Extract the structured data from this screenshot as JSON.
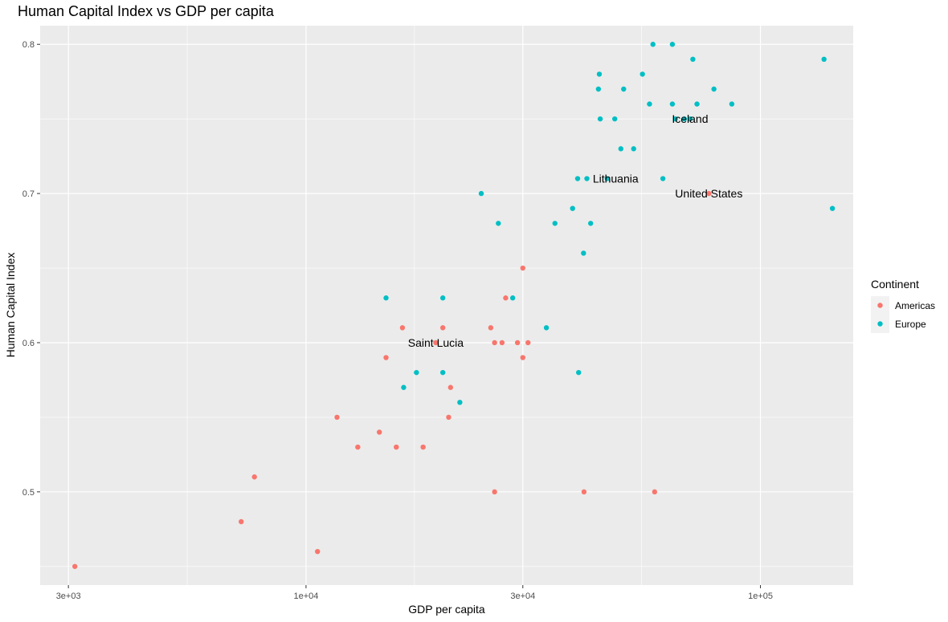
{
  "chart_data": {
    "type": "scatter",
    "title": "Human Capital Index vs GDP per capita",
    "xlabel": "GDP per capita",
    "ylabel": "Human Capital Index",
    "x_scale": "log10",
    "xlim": [
      2600,
      160000
    ],
    "ylim": [
      0.4375,
      0.8125
    ],
    "x_ticks": [
      {
        "value": 3000,
        "label": "3e+03"
      },
      {
        "value": 10000,
        "label": "1e+04"
      },
      {
        "value": 30000,
        "label": "3e+04"
      },
      {
        "value": 100000,
        "label": "1e+05"
      }
    ],
    "x_minor_ticks": [
      5477,
      17321,
      54772
    ],
    "y_ticks": [
      {
        "value": 0.5,
        "label": "0.5"
      },
      {
        "value": 0.6,
        "label": "0.6"
      },
      {
        "value": 0.7,
        "label": "0.7"
      },
      {
        "value": 0.8,
        "label": "0.8"
      }
    ],
    "y_minor_ticks": [
      0.45,
      0.55,
      0.65,
      0.75
    ],
    "grid": true,
    "legend": {
      "title": "Continent",
      "position": "right"
    },
    "series": [
      {
        "name": "Americas",
        "color": "#F8766D",
        "points": [
          [
            3100,
            0.45
          ],
          [
            7200,
            0.48
          ],
          [
            7700,
            0.51
          ],
          [
            10600,
            0.46
          ],
          [
            11700,
            0.55
          ],
          [
            13000,
            0.53
          ],
          [
            14500,
            0.54
          ],
          [
            15000,
            0.59
          ],
          [
            15800,
            0.53
          ],
          [
            16300,
            0.61
          ],
          [
            18100,
            0.53
          ],
          [
            19300,
            0.6
          ],
          [
            20000,
            0.61
          ],
          [
            20600,
            0.55
          ],
          [
            20800,
            0.57
          ],
          [
            25500,
            0.61
          ],
          [
            26000,
            0.6
          ],
          [
            26000,
            0.5
          ],
          [
            27000,
            0.6
          ],
          [
            27500,
            0.63
          ],
          [
            29200,
            0.6
          ],
          [
            30000,
            0.59
          ],
          [
            30000,
            0.65
          ],
          [
            30800,
            0.6
          ],
          [
            40900,
            0.5
          ],
          [
            58500,
            0.5
          ],
          [
            77000,
            0.7
          ]
        ]
      },
      {
        "name": "Europe",
        "color": "#00BFC4",
        "points": [
          [
            15000,
            0.63
          ],
          [
            16400,
            0.57
          ],
          [
            17500,
            0.58
          ],
          [
            20000,
            0.63
          ],
          [
            20000,
            0.58
          ],
          [
            21800,
            0.56
          ],
          [
            24300,
            0.7
          ],
          [
            26500,
            0.68
          ],
          [
            28500,
            0.63
          ],
          [
            33800,
            0.61
          ],
          [
            35300,
            0.68
          ],
          [
            38600,
            0.69
          ],
          [
            39600,
            0.71
          ],
          [
            39800,
            0.58
          ],
          [
            40800,
            0.66
          ],
          [
            41500,
            0.71
          ],
          [
            42300,
            0.68
          ],
          [
            44000,
            0.77
          ],
          [
            44200,
            0.78
          ],
          [
            44400,
            0.75
          ],
          [
            46000,
            0.71
          ],
          [
            47800,
            0.75
          ],
          [
            49300,
            0.73
          ],
          [
            50000,
            0.77
          ],
          [
            52600,
            0.73
          ],
          [
            55000,
            0.78
          ],
          [
            57000,
            0.76
          ],
          [
            58000,
            0.8
          ],
          [
            61000,
            0.71
          ],
          [
            64000,
            0.76
          ],
          [
            64000,
            0.8
          ],
          [
            65000,
            0.75
          ],
          [
            68000,
            0.75
          ],
          [
            70000,
            0.75
          ],
          [
            71000,
            0.79
          ],
          [
            72500,
            0.76
          ],
          [
            79000,
            0.77
          ],
          [
            86500,
            0.76
          ],
          [
            138000,
            0.79
          ],
          [
            144000,
            0.69
          ]
        ]
      }
    ],
    "annotations": [
      {
        "text": "Iceland",
        "x": 70000,
        "y": 0.75
      },
      {
        "text": "Lithuania",
        "x": 48000,
        "y": 0.71
      },
      {
        "text": "United States",
        "x": 77000,
        "y": 0.7
      },
      {
        "text": "Saint Lucia",
        "x": 19300,
        "y": 0.6
      }
    ]
  }
}
